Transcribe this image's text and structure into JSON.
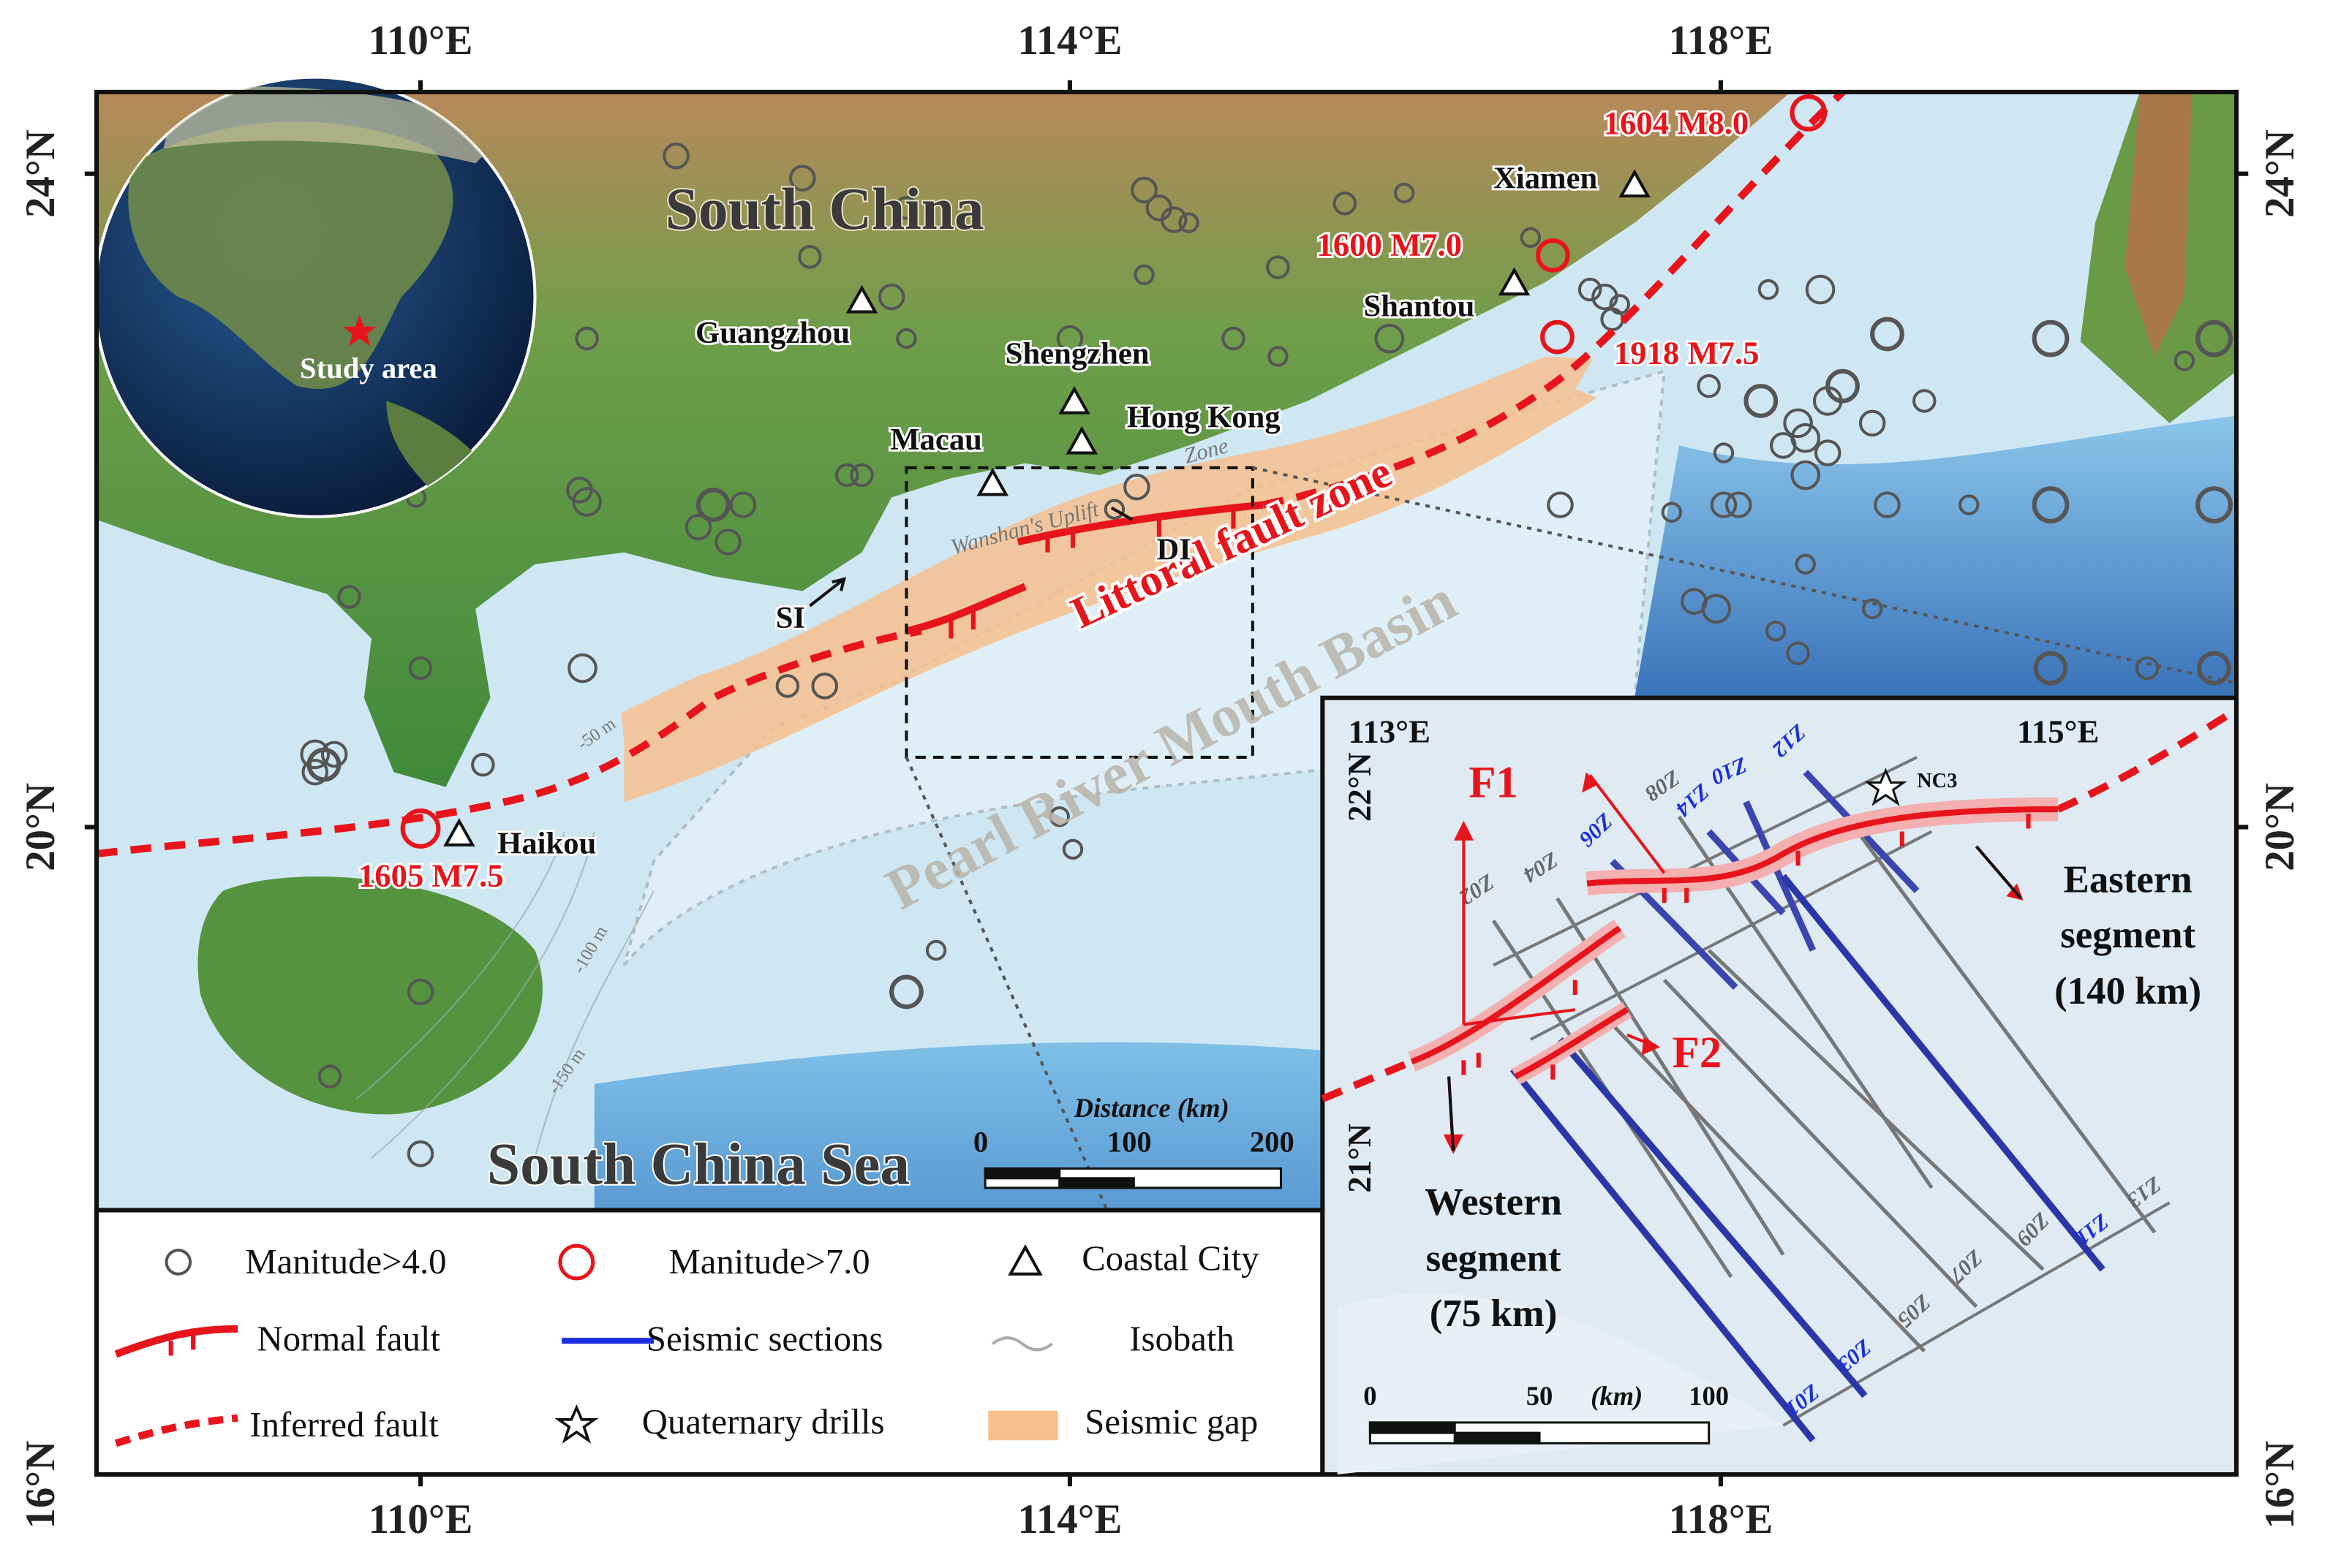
{
  "map": {
    "lon_ticks": [
      "110°E",
      "114°E",
      "118°E"
    ],
    "lat_ticks": [
      "24°N",
      "20°N",
      "16°N"
    ],
    "region": "South China",
    "sea": "South China Sea",
    "basin": "Pearl River Mouth Basin",
    "fault_zone": "Littoral fault zone",
    "uplift": [
      "Wanshan's Uplift",
      "Zone"
    ],
    "cities": [
      "Xiamen",
      "Shantou",
      "Guangzhou",
      "Shengzhen",
      "Hong Kong",
      "Macau",
      "Haikou"
    ],
    "earthquakes": [
      "1604 M8.0",
      "1600 M7.0",
      "1918 M7.5",
      "1605 M7.5"
    ],
    "markers": [
      "DI",
      "SI"
    ],
    "isobaths": [
      "-50 m",
      "-100 m",
      "-150 m"
    ],
    "globe_label": "Study area",
    "scale_bar": {
      "title": "Distance (km)",
      "ticks": [
        "0",
        "100",
        "200"
      ]
    }
  },
  "legend": [
    "Manitude>4.0",
    "Manitude>7.0",
    "Coastal City",
    "Normal fault",
    "Seismic sections",
    "Isobath",
    "Inferred fault",
    "Quaternary drills",
    "Seismic gap"
  ],
  "inset": {
    "lon_ticks": [
      "113°E",
      "115°E"
    ],
    "lat_ticks": [
      "22°N",
      "21°N"
    ],
    "sections": [
      "Z01",
      "Z02",
      "Z03",
      "Z04",
      "Z05",
      "Z06",
      "Z07",
      "Z08",
      "Z09",
      "Z10",
      "Z11",
      "Z12",
      "Z13",
      "Z14"
    ],
    "faults": [
      "F1",
      "F2"
    ],
    "eastern": [
      "Eastern",
      "segment",
      "(140 km)"
    ],
    "western": [
      "Western",
      "segment",
      "(75 km)"
    ],
    "drill": "NC3",
    "scale_bar": {
      "ticks": [
        "0",
        "50",
        "100"
      ],
      "unit": "(km)"
    }
  }
}
